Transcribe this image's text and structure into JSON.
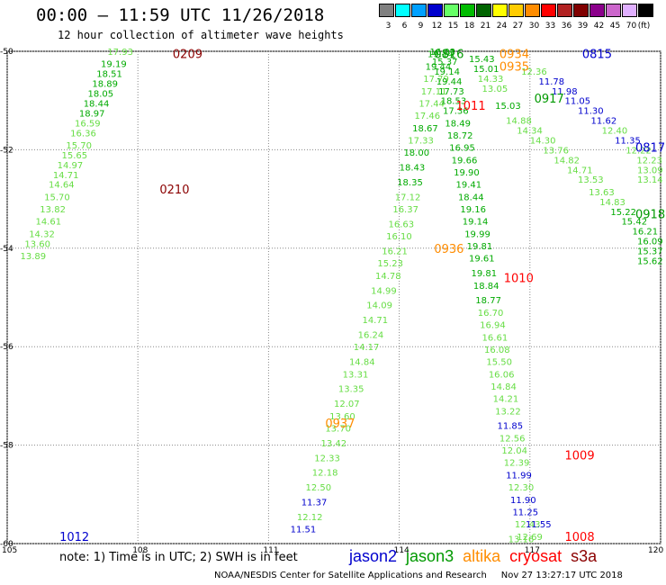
{
  "title": "00:00 – 11:59 UTC 11/26/2018",
  "subtitle": "12 hour collection of altimeter wave heights",
  "legend": {
    "unit": "(ft)",
    "bins": [
      {
        "label": "3",
        "color": "#808080"
      },
      {
        "label": "6",
        "color": "#00ffff"
      },
      {
        "label": "9",
        "color": "#00a0ff"
      },
      {
        "label": "12",
        "color": "#0000cd"
      },
      {
        "label": "15",
        "color": "#66ff66"
      },
      {
        "label": "18",
        "color": "#00bb00"
      },
      {
        "label": "21",
        "color": "#006400"
      },
      {
        "label": "24",
        "color": "#ffff00"
      },
      {
        "label": "27",
        "color": "#ffcc00"
      },
      {
        "label": "30",
        "color": "#ff8c00"
      },
      {
        "label": "33",
        "color": "#ff0000"
      },
      {
        "label": "36",
        "color": "#b22222"
      },
      {
        "label": "39",
        "color": "#800000"
      },
      {
        "label": "42",
        "color": "#8b008b"
      },
      {
        "label": "45",
        "color": "#cc66cc"
      },
      {
        "label": "70",
        "color": "#e0b0ff"
      },
      {
        "label": "",
        "color": "#000000"
      }
    ]
  },
  "axes": {
    "x_ticks": [
      "105",
      "108",
      "111",
      "114",
      "117",
      "120"
    ],
    "y_ticks": [
      "-50",
      "-52",
      "-54",
      "-56",
      "-58",
      "-60"
    ]
  },
  "sat_colors": {
    "jason2": "#0000cd",
    "jason3": "#009900",
    "altika": "#ff8c00",
    "cryosat": "#ff0000",
    "s3a": "#8b0000",
    "light": "#66dd44",
    "mid": "#00aa00",
    "dark": "#006400"
  },
  "time_labels": [
    {
      "t": "0209",
      "lon": 108.8,
      "lat": -50.05,
      "sat": "s3a"
    },
    {
      "t": "0210",
      "lon": 108.5,
      "lat": -52.8,
      "sat": "s3a"
    },
    {
      "t": "1012",
      "lon": 106.2,
      "lat": -59.85,
      "sat": "jason2"
    },
    {
      "t": "0816",
      "lon": 114.8,
      "lat": -50.05,
      "sat": "jason3"
    },
    {
      "t": "0934",
      "lon": 116.3,
      "lat": -50.05,
      "sat": "altika"
    },
    {
      "t": "0815",
      "lon": 118.2,
      "lat": -50.05,
      "sat": "jason2"
    },
    {
      "t": "0935",
      "lon": 116.3,
      "lat": -50.3,
      "sat": "altika"
    },
    {
      "t": "0917",
      "lon": 117.1,
      "lat": -50.95,
      "sat": "jason3"
    },
    {
      "t": "1011",
      "lon": 115.3,
      "lat": -51.1,
      "sat": "cryosat"
    },
    {
      "t": "0817",
      "lon": 120.3,
      "lat": -51.95,
      "sat": "jason2"
    },
    {
      "t": "0918",
      "lon": 120.3,
      "lat": -53.3,
      "sat": "jason3"
    },
    {
      "t": "0936",
      "lon": 114.8,
      "lat": -54.0,
      "sat": "altika"
    },
    {
      "t": "1010",
      "lon": 116.4,
      "lat": -54.6,
      "sat": "cryosat"
    },
    {
      "t": "0937",
      "lon": 112.3,
      "lat": -57.55,
      "sat": "altika"
    },
    {
      "t": "1009",
      "lon": 117.8,
      "lat": -58.2,
      "sat": "cryosat"
    },
    {
      "t": "1008",
      "lon": 117.8,
      "lat": -59.85,
      "sat": "cryosat"
    }
  ],
  "tracks": [
    {
      "name": "s3a-west",
      "points": [
        {
          "lon": 107.3,
          "lat": -50.0,
          "v": "17.93",
          "c": "light"
        },
        {
          "lon": 107.15,
          "lat": -50.25,
          "v": "19.19",
          "c": "mid"
        },
        {
          "lon": 107.05,
          "lat": -50.45,
          "v": "18.51",
          "c": "mid"
        },
        {
          "lon": 106.95,
          "lat": -50.65,
          "v": "18.89",
          "c": "mid"
        },
        {
          "lon": 106.85,
          "lat": -50.85,
          "v": "18.05",
          "c": "mid"
        },
        {
          "lon": 106.75,
          "lat": -51.05,
          "v": "18.44",
          "c": "mid"
        },
        {
          "lon": 106.65,
          "lat": -51.25,
          "v": "18.97",
          "c": "mid"
        },
        {
          "lon": 106.55,
          "lat": -51.45,
          "v": "16.59",
          "c": "light"
        },
        {
          "lon": 106.45,
          "lat": -51.65,
          "v": "16.36",
          "c": "light"
        },
        {
          "lon": 106.35,
          "lat": -51.9,
          "v": "15.70",
          "c": "light"
        },
        {
          "lon": 106.25,
          "lat": -52.1,
          "v": "15.65",
          "c": "light"
        },
        {
          "lon": 106.15,
          "lat": -52.3,
          "v": "14.97",
          "c": "light"
        },
        {
          "lon": 106.05,
          "lat": -52.5,
          "v": "14.71",
          "c": "light"
        },
        {
          "lon": 105.95,
          "lat": -52.7,
          "v": "14.64",
          "c": "light"
        },
        {
          "lon": 105.85,
          "lat": -52.95,
          "v": "15.70",
          "c": "light"
        },
        {
          "lon": 105.75,
          "lat": -53.2,
          "v": "13.82",
          "c": "light"
        },
        {
          "lon": 105.65,
          "lat": -53.45,
          "v": "14.61",
          "c": "light"
        },
        {
          "lon": 105.5,
          "lat": -53.7,
          "v": "14.32",
          "c": "light"
        },
        {
          "lon": 105.4,
          "lat": -53.9,
          "v": "13.60",
          "c": "light"
        },
        {
          "lon": 105.3,
          "lat": -54.15,
          "v": "13.89",
          "c": "light"
        }
      ]
    },
    {
      "name": "altika-rising",
      "points": [
        {
          "lon": 111.5,
          "lat": -59.7,
          "v": "11.51",
          "c": "jason2"
        },
        {
          "lon": 111.65,
          "lat": -59.45,
          "v": "12.12",
          "c": "light"
        },
        {
          "lon": 111.75,
          "lat": -59.15,
          "v": "11.37",
          "c": "jason2"
        },
        {
          "lon": 111.85,
          "lat": -58.85,
          "v": "12.50",
          "c": "light"
        },
        {
          "lon": 112.0,
          "lat": -58.55,
          "v": "12.18",
          "c": "light"
        },
        {
          "lon": 112.05,
          "lat": -58.25,
          "v": "12.33",
          "c": "light"
        },
        {
          "lon": 112.2,
          "lat": -57.95,
          "v": "13.42",
          "c": "light"
        },
        {
          "lon": 112.3,
          "lat": -57.65,
          "v": "13.70",
          "c": "light"
        },
        {
          "lon": 112.4,
          "lat": -57.4,
          "v": "13.60",
          "c": "light"
        },
        {
          "lon": 112.5,
          "lat": -57.15,
          "v": "12.07",
          "c": "light"
        },
        {
          "lon": 112.6,
          "lat": -56.85,
          "v": "13.35",
          "c": "light"
        },
        {
          "lon": 112.7,
          "lat": -56.55,
          "v": "13.31",
          "c": "light"
        },
        {
          "lon": 112.85,
          "lat": -56.3,
          "v": "14.84",
          "c": "light"
        },
        {
          "lon": 112.95,
          "lat": -56.0,
          "v": "14.17",
          "c": "light"
        },
        {
          "lon": 113.05,
          "lat": -55.75,
          "v": "16.24",
          "c": "light"
        },
        {
          "lon": 113.15,
          "lat": -55.45,
          "v": "14.71",
          "c": "light"
        },
        {
          "lon": 113.25,
          "lat": -55.15,
          "v": "14.09",
          "c": "light"
        },
        {
          "lon": 113.35,
          "lat": -54.85,
          "v": "14.99",
          "c": "light"
        },
        {
          "lon": 113.45,
          "lat": -54.55,
          "v": "14.78",
          "c": "light"
        },
        {
          "lon": 113.5,
          "lat": -54.3,
          "v": "15.23",
          "c": "light"
        },
        {
          "lon": 113.6,
          "lat": -54.05,
          "v": "16.21",
          "c": "light"
        },
        {
          "lon": 113.7,
          "lat": -53.75,
          "v": "16.10",
          "c": "light"
        },
        {
          "lon": 113.75,
          "lat": -53.5,
          "v": "16.63",
          "c": "light"
        },
        {
          "lon": 113.85,
          "lat": -53.2,
          "v": "16.37",
          "c": "light"
        },
        {
          "lon": 113.9,
          "lat": -52.95,
          "v": "17.12",
          "c": "light"
        },
        {
          "lon": 113.95,
          "lat": -52.65,
          "v": "18.35",
          "c": "mid"
        },
        {
          "lon": 114.0,
          "lat": -52.35,
          "v": "18.43",
          "c": "mid"
        },
        {
          "lon": 114.1,
          "lat": -52.05,
          "v": "18.00",
          "c": "mid"
        },
        {
          "lon": 114.2,
          "lat": -51.8,
          "v": "17.33",
          "c": "light"
        },
        {
          "lon": 114.3,
          "lat": -51.55,
          "v": "18.67",
          "c": "mid"
        },
        {
          "lon": 114.35,
          "lat": -51.3,
          "v": "17.46",
          "c": "light"
        },
        {
          "lon": 114.45,
          "lat": -51.05,
          "v": "17.44",
          "c": "light"
        },
        {
          "lon": 114.5,
          "lat": -50.8,
          "v": "17.11",
          "c": "light"
        },
        {
          "lon": 114.55,
          "lat": -50.55,
          "v": "17.79",
          "c": "light"
        },
        {
          "lon": 114.6,
          "lat": -50.3,
          "v": "19.44",
          "c": "mid"
        },
        {
          "lon": 114.65,
          "lat": -50.05,
          "v": "19.14",
          "c": "mid"
        }
      ]
    },
    {
      "name": "cryosat-descending",
      "points": [
        {
          "lon": 114.7,
          "lat": -50.0,
          "v": "16.03",
          "c": "mid"
        },
        {
          "lon": 114.75,
          "lat": -50.2,
          "v": "15.37",
          "c": "mid"
        },
        {
          "lon": 114.8,
          "lat": -50.4,
          "v": "19.14",
          "c": "mid"
        },
        {
          "lon": 114.85,
          "lat": -50.6,
          "v": "19.44",
          "c": "mid"
        },
        {
          "lon": 114.9,
          "lat": -50.8,
          "v": "17.73",
          "c": "mid"
        },
        {
          "lon": 114.95,
          "lat": -51.0,
          "v": "18.53",
          "c": "mid"
        },
        {
          "lon": 115.0,
          "lat": -51.2,
          "v": "17.36",
          "c": "mid"
        },
        {
          "lon": 115.05,
          "lat": -51.45,
          "v": "18.49",
          "c": "mid"
        },
        {
          "lon": 115.1,
          "lat": -51.7,
          "v": "18.72",
          "c": "mid"
        },
        {
          "lon": 115.15,
          "lat": -51.95,
          "v": "16.95",
          "c": "mid"
        },
        {
          "lon": 115.2,
          "lat": -52.2,
          "v": "19.66",
          "c": "mid"
        },
        {
          "lon": 115.25,
          "lat": -52.45,
          "v": "19.90",
          "c": "mid"
        },
        {
          "lon": 115.3,
          "lat": -52.7,
          "v": "19.41",
          "c": "mid"
        },
        {
          "lon": 115.35,
          "lat": -52.95,
          "v": "18.44",
          "c": "mid"
        },
        {
          "lon": 115.4,
          "lat": -53.2,
          "v": "19.16",
          "c": "mid"
        },
        {
          "lon": 115.45,
          "lat": -53.45,
          "v": "19.14",
          "c": "mid"
        },
        {
          "lon": 115.5,
          "lat": -53.7,
          "v": "19.99",
          "c": "mid"
        },
        {
          "lon": 115.55,
          "lat": -53.95,
          "v": "19.81",
          "c": "mid"
        },
        {
          "lon": 115.6,
          "lat": -54.2,
          "v": "19.61",
          "c": "mid"
        },
        {
          "lon": 115.65,
          "lat": -54.5,
          "v": "19.81",
          "c": "mid"
        },
        {
          "lon": 115.7,
          "lat": -54.75,
          "v": "18.84",
          "c": "mid"
        },
        {
          "lon": 115.75,
          "lat": -55.05,
          "v": "18.77",
          "c": "mid"
        },
        {
          "lon": 115.8,
          "lat": -55.3,
          "v": "16.70",
          "c": "light"
        },
        {
          "lon": 115.85,
          "lat": -55.55,
          "v": "16.94",
          "c": "light"
        },
        {
          "lon": 115.9,
          "lat": -55.8,
          "v": "16.61",
          "c": "light"
        },
        {
          "lon": 115.95,
          "lat": -56.05,
          "v": "16.08",
          "c": "light"
        },
        {
          "lon": 116.0,
          "lat": -56.3,
          "v": "15.50",
          "c": "light"
        },
        {
          "lon": 116.05,
          "lat": -56.55,
          "v": "16.06",
          "c": "light"
        },
        {
          "lon": 116.1,
          "lat": -56.8,
          "v": "14.84",
          "c": "light"
        },
        {
          "lon": 116.15,
          "lat": -57.05,
          "v": "14.21",
          "c": "light"
        },
        {
          "lon": 116.2,
          "lat": -57.3,
          "v": "13.22",
          "c": "light"
        },
        {
          "lon": 116.25,
          "lat": -57.6,
          "v": "11.85",
          "c": "jason2"
        },
        {
          "lon": 116.3,
          "lat": -57.85,
          "v": "12.56",
          "c": "light"
        },
        {
          "lon": 116.35,
          "lat": -58.1,
          "v": "12.04",
          "c": "light"
        },
        {
          "lon": 116.4,
          "lat": -58.35,
          "v": "12.39",
          "c": "light"
        },
        {
          "lon": 116.45,
          "lat": -58.6,
          "v": "11.99",
          "c": "jason2"
        },
        {
          "lon": 116.5,
          "lat": -58.85,
          "v": "12.30",
          "c": "light"
        },
        {
          "lon": 116.55,
          "lat": -59.1,
          "v": "11.90",
          "c": "jason2"
        },
        {
          "lon": 116.6,
          "lat": -59.35,
          "v": "11.25",
          "c": "jason2"
        },
        {
          "lon": 116.65,
          "lat": -59.6,
          "v": "12.43",
          "c": "light"
        },
        {
          "lon": 116.7,
          "lat": -59.85,
          "v": "12.69",
          "c": "light"
        }
      ]
    },
    {
      "name": "cryosat-bottom",
      "points": [
        {
          "lon": 116.9,
          "lat": -59.6,
          "v": "11.55",
          "c": "jason2"
        },
        {
          "lon": 116.5,
          "lat": -59.9,
          "v": "13.16",
          "c": "light"
        }
      ]
    },
    {
      "name": "jason3-east",
      "points": [
        {
          "lon": 115.6,
          "lat": -50.15,
          "v": "15.43",
          "c": "mid"
        },
        {
          "lon": 115.7,
          "lat": -50.35,
          "v": "15.01",
          "c": "mid"
        },
        {
          "lon": 115.8,
          "lat": -50.55,
          "v": "14.33",
          "c": "light"
        },
        {
          "lon": 115.9,
          "lat": -50.75,
          "v": "13.05",
          "c": "light"
        },
        {
          "lon": 116.2,
          "lat": -51.1,
          "v": "15.03",
          "c": "mid"
        },
        {
          "lon": 116.45,
          "lat": -51.4,
          "v": "14.88",
          "c": "light"
        },
        {
          "lon": 116.7,
          "lat": -51.6,
          "v": "14.34",
          "c": "light"
        },
        {
          "lon": 117.0,
          "lat": -51.8,
          "v": "14.30",
          "c": "light"
        },
        {
          "lon": 117.3,
          "lat": -52.0,
          "v": "13.76",
          "c": "light"
        },
        {
          "lon": 117.55,
          "lat": -52.2,
          "v": "14.82",
          "c": "light"
        },
        {
          "lon": 117.85,
          "lat": -52.4,
          "v": "14.71",
          "c": "light"
        },
        {
          "lon": 118.1,
          "lat": -52.6,
          "v": "13.53",
          "c": "light"
        },
        {
          "lon": 118.35,
          "lat": -52.85,
          "v": "13.63",
          "c": "light"
        },
        {
          "lon": 118.6,
          "lat": -53.05,
          "v": "14.83",
          "c": "light"
        },
        {
          "lon": 118.85,
          "lat": -53.25,
          "v": "15.22",
          "c": "mid"
        },
        {
          "lon": 119.1,
          "lat": -53.45,
          "v": "15.42",
          "c": "mid"
        },
        {
          "lon": 119.35,
          "lat": -53.65,
          "v": "16.21",
          "c": "mid"
        },
        {
          "lon": 119.55,
          "lat": -53.85,
          "v": "16.09",
          "c": "mid"
        },
        {
          "lon": 119.75,
          "lat": -54.05,
          "v": "15.37",
          "c": "mid"
        },
        {
          "lon": 119.95,
          "lat": -54.25,
          "v": "15.62",
          "c": "mid"
        }
      ]
    },
    {
      "name": "jason2-east",
      "points": [
        {
          "lon": 116.8,
          "lat": -50.4,
          "v": "12.36",
          "c": "light"
        },
        {
          "lon": 117.2,
          "lat": -50.6,
          "v": "11.78",
          "c": "jason2"
        },
        {
          "lon": 117.5,
          "lat": -50.8,
          "v": "11.98",
          "c": "jason2"
        },
        {
          "lon": 117.8,
          "lat": -51.0,
          "v": "11.05",
          "c": "jason2"
        },
        {
          "lon": 118.1,
          "lat": -51.2,
          "v": "11.30",
          "c": "jason2"
        },
        {
          "lon": 118.4,
          "lat": -51.4,
          "v": "11.62",
          "c": "jason2"
        },
        {
          "lon": 118.65,
          "lat": -51.6,
          "v": "12.40",
          "c": "light"
        },
        {
          "lon": 118.95,
          "lat": -51.8,
          "v": "11.35",
          "c": "jason2"
        },
        {
          "lon": 119.2,
          "lat": -52.0,
          "v": "12.22",
          "c": "light"
        },
        {
          "lon": 119.45,
          "lat": -52.2,
          "v": "12.23",
          "c": "light"
        },
        {
          "lon": 119.7,
          "lat": -52.4,
          "v": "13.09",
          "c": "light"
        },
        {
          "lon": 119.9,
          "lat": -52.6,
          "v": "13.14",
          "c": "light"
        }
      ]
    }
  ],
  "note": "note:  1) Time is in UTC;  2) SWH is in feet",
  "satellites": [
    {
      "name": "jason2",
      "key": "jason2"
    },
    {
      "name": "jason3",
      "key": "jason3"
    },
    {
      "name": "altika",
      "key": "altika"
    },
    {
      "name": "cryosat",
      "key": "cryosat"
    },
    {
      "name": "s3a",
      "key": "s3a"
    }
  ],
  "footer": "NOAA/NESDIS Center for Satellite Applications and Research     Nov 27 13:27:17 UTC 2018"
}
